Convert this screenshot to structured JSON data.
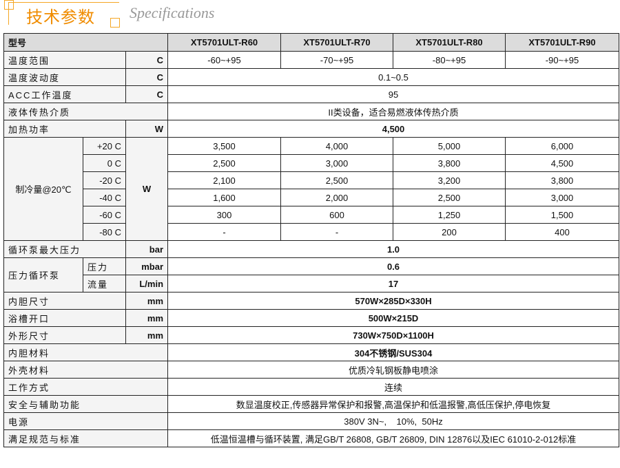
{
  "header": {
    "title_cn": "技术参数",
    "title_en": "Specifications",
    "accent": "#f5a623"
  },
  "table": {
    "model_label": "型号",
    "models": [
      "XT5701ULT-R60",
      "XT5701ULT-R70",
      "XT5701ULT-R80",
      "XT5701ULT-R90"
    ],
    "temp_range": {
      "label": "温度范围",
      "unit": "C",
      "values": [
        "-60~+95",
        "-70~+95",
        "-80~+95",
        "-90~+95"
      ]
    },
    "fluctuation": {
      "label": "温度波动度",
      "unit": "C",
      "value": "0.1~0.5"
    },
    "acc": {
      "label": "ACC工作温度",
      "unit": "C",
      "value": "95"
    },
    "medium": {
      "label": "液体传热介质",
      "value": "II类设备，适合易燃液体传热介质"
    },
    "heating": {
      "label": "加热功率",
      "unit": "W",
      "value": "4,500"
    },
    "cooling": {
      "label": "制冷量@20℃",
      "unit": "W",
      "rows": [
        {
          "temp": "+20 C",
          "values": [
            "3,500",
            "4,000",
            "5,000",
            "6,000"
          ]
        },
        {
          "temp": "0 C",
          "values": [
            "2,500",
            "3,000",
            "3,800",
            "4,500"
          ]
        },
        {
          "temp": "-20 C",
          "values": [
            "2,100",
            "2,500",
            "3,200",
            "3,800"
          ]
        },
        {
          "temp": "-40 C",
          "values": [
            "1,600",
            "2,000",
            "2,500",
            "3,000"
          ]
        },
        {
          "temp": "-60 C",
          "values": [
            "300",
            "600",
            "1,250",
            "1,500"
          ]
        },
        {
          "temp": "-80 C",
          "values": [
            "-",
            "-",
            "200",
            "400"
          ]
        }
      ]
    },
    "pump_max": {
      "label": "循环泵最大压力",
      "unit": "bar",
      "value": "1.0"
    },
    "pressure_pump": {
      "label": "压力循环泵",
      "pressure_label": "压力",
      "pressure_unit": "mbar",
      "pressure_value": "0.6",
      "flow_label": "流量",
      "flow_unit": "L/min",
      "flow_value": "17"
    },
    "inner_size": {
      "label": "内胆尺寸",
      "unit": "mm",
      "value": "570W×285D×330H"
    },
    "opening": {
      "label": "浴槽开口",
      "unit": "mm",
      "value": "500W×215D"
    },
    "outer_size": {
      "label": "外形尺寸",
      "unit": "mm",
      "value": "730W×750D×1100H"
    },
    "inner_material": {
      "label": "内胆材料",
      "value": "304不锈钢/SUS304"
    },
    "shell_material": {
      "label": "外壳材料",
      "value": "优质冷轧钢板静电喷涂"
    },
    "mode": {
      "label": "工作方式",
      "value": "连续"
    },
    "safety": {
      "label": "安全与辅助功能",
      "value": "数显温度校正,传感器异常保护和报警,高温保护和低温报警,高低压保护,停电恢复"
    },
    "power": {
      "label": "电源",
      "value": "380V 3N~,    10%,  50Hz"
    },
    "standards": {
      "label": "满足规范与标准",
      "value": "低温恒温槽与循环装置, 满足GB/T 26808, GB/T 26809, DIN 12876以及IEC 61010-2-012标准"
    }
  }
}
